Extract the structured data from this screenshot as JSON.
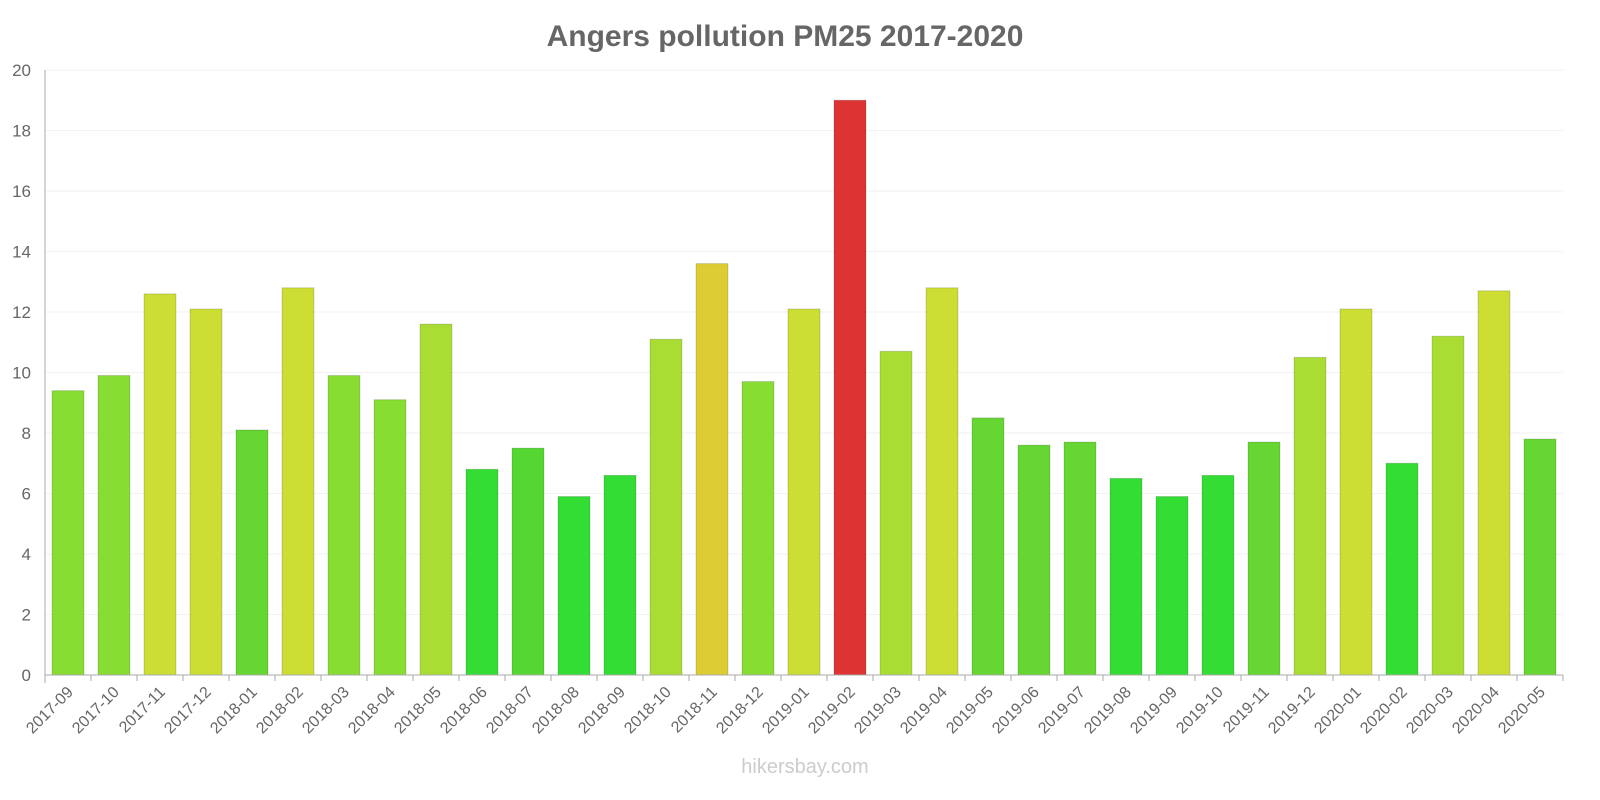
{
  "chart_data": {
    "type": "bar",
    "title": "Angers pollution PM25 2017-2020",
    "xlabel": "",
    "ylabel": "",
    "ylim": [
      0,
      20
    ],
    "yticks": [
      0,
      2,
      4,
      6,
      8,
      10,
      12,
      14,
      16,
      18,
      20
    ],
    "grid": true,
    "categories": [
      "2017-09",
      "2017-10",
      "2017-11",
      "2017-12",
      "2018-01",
      "2018-02",
      "2018-03",
      "2018-04",
      "2018-05",
      "2018-06",
      "2018-07",
      "2018-08",
      "2018-09",
      "2018-10",
      "2018-11",
      "2018-12",
      "2019-01",
      "2019-02",
      "2019-03",
      "2019-04",
      "2019-05",
      "2019-06",
      "2019-07",
      "2019-08",
      "2019-09",
      "2019-10",
      "2019-11",
      "2019-12",
      "2020-01",
      "2020-02",
      "2020-03",
      "2020-04",
      "2020-05"
    ],
    "values": [
      9.4,
      9.9,
      12.6,
      12.1,
      8.1,
      12.8,
      9.9,
      9.1,
      11.6,
      6.8,
      7.5,
      5.9,
      6.6,
      11.1,
      13.6,
      9.7,
      12.1,
      19.0,
      10.7,
      12.8,
      8.5,
      7.6,
      7.7,
      6.5,
      5.9,
      6.6,
      7.7,
      10.5,
      12.1,
      7.0,
      11.2,
      12.7,
      7.8
    ],
    "colors": [
      "#88dd33",
      "#88dd33",
      "#ccdd33",
      "#ccdd33",
      "#66d633",
      "#ccdd33",
      "#88dd33",
      "#88dd33",
      "#aadd33",
      "#33dd33",
      "#55d633",
      "#33dd33",
      "#33dd33",
      "#aadd33",
      "#ddcc33",
      "#88dd33",
      "#ccdd33",
      "#dd3333",
      "#aadd33",
      "#ccdd33",
      "#66d633",
      "#66d633",
      "#66d633",
      "#33dd33",
      "#33dd33",
      "#33dd33",
      "#66d633",
      "#aadd33",
      "#ccdd33",
      "#33dd33",
      "#aadd33",
      "#ccdd33",
      "#66d633"
    ]
  },
  "watermark": "hikersbay.com"
}
